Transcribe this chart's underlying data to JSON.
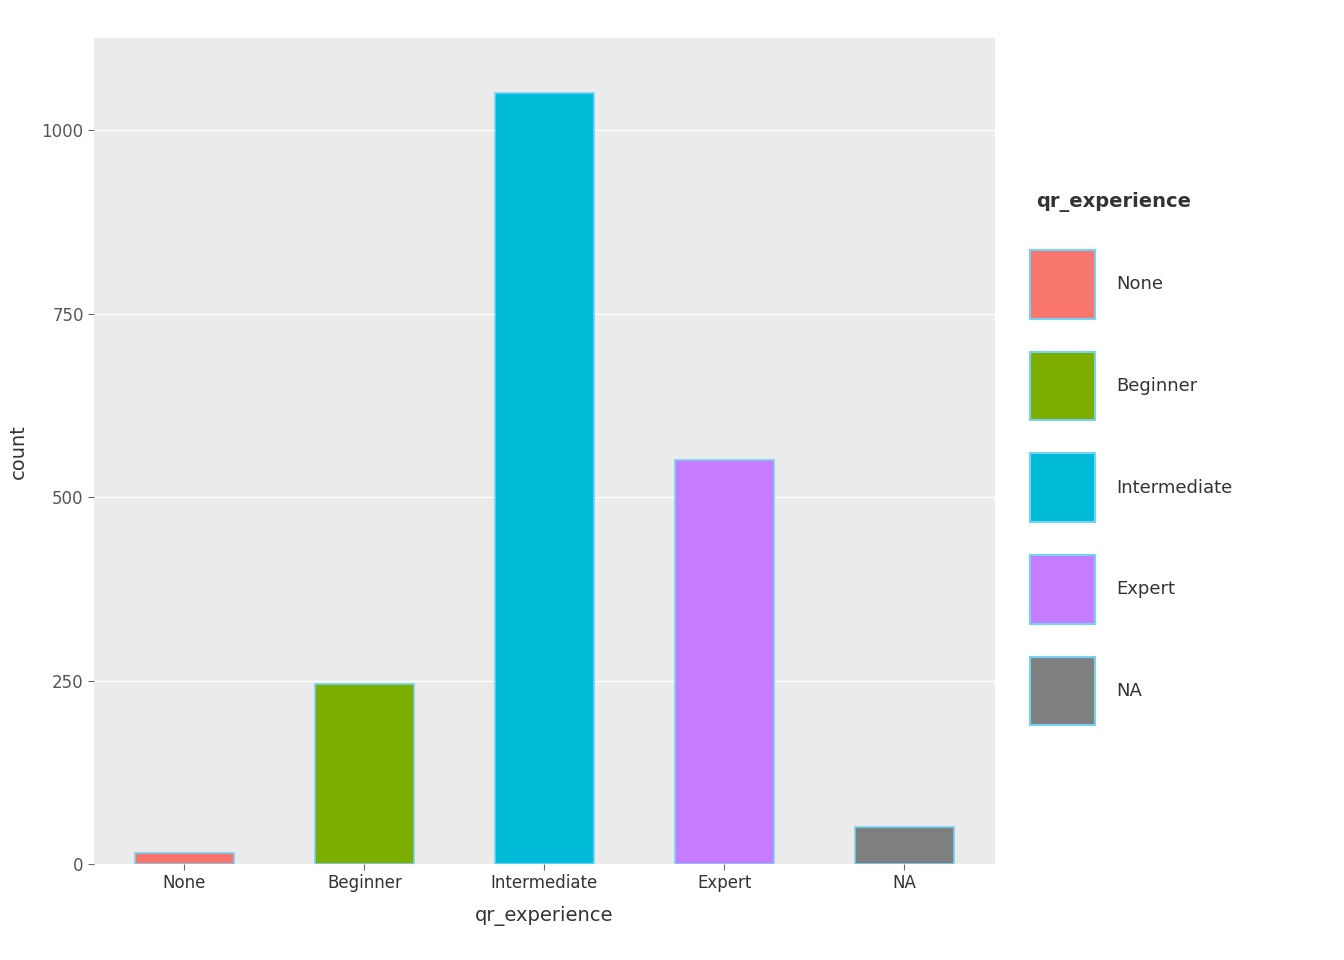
{
  "categories": [
    "None",
    "Beginner",
    "Intermediate",
    "Expert",
    "NA"
  ],
  "values": [
    15,
    245,
    1050,
    550,
    50
  ],
  "bar_colors": [
    "#F8766D",
    "#7CAE00",
    "#00BCD8",
    "#C77CFF",
    "#7F7F7F"
  ],
  "legend_title": "qr_experience",
  "legend_labels": [
    "None",
    "Beginner",
    "Intermediate",
    "Expert",
    "NA"
  ],
  "xlabel": "qr_experience",
  "ylabel": "count",
  "ylim": [
    0,
    1125
  ],
  "yticks": [
    0,
    250,
    500,
    750,
    1000
  ],
  "bg_color": "#EBEBEB",
  "grid_color": "#FFFFFF",
  "bar_edge_color": "#73D2F5",
  "axis_label_fontsize": 14,
  "tick_fontsize": 12,
  "legend_title_fontsize": 14,
  "legend_fontsize": 13,
  "bar_width": 0.55
}
